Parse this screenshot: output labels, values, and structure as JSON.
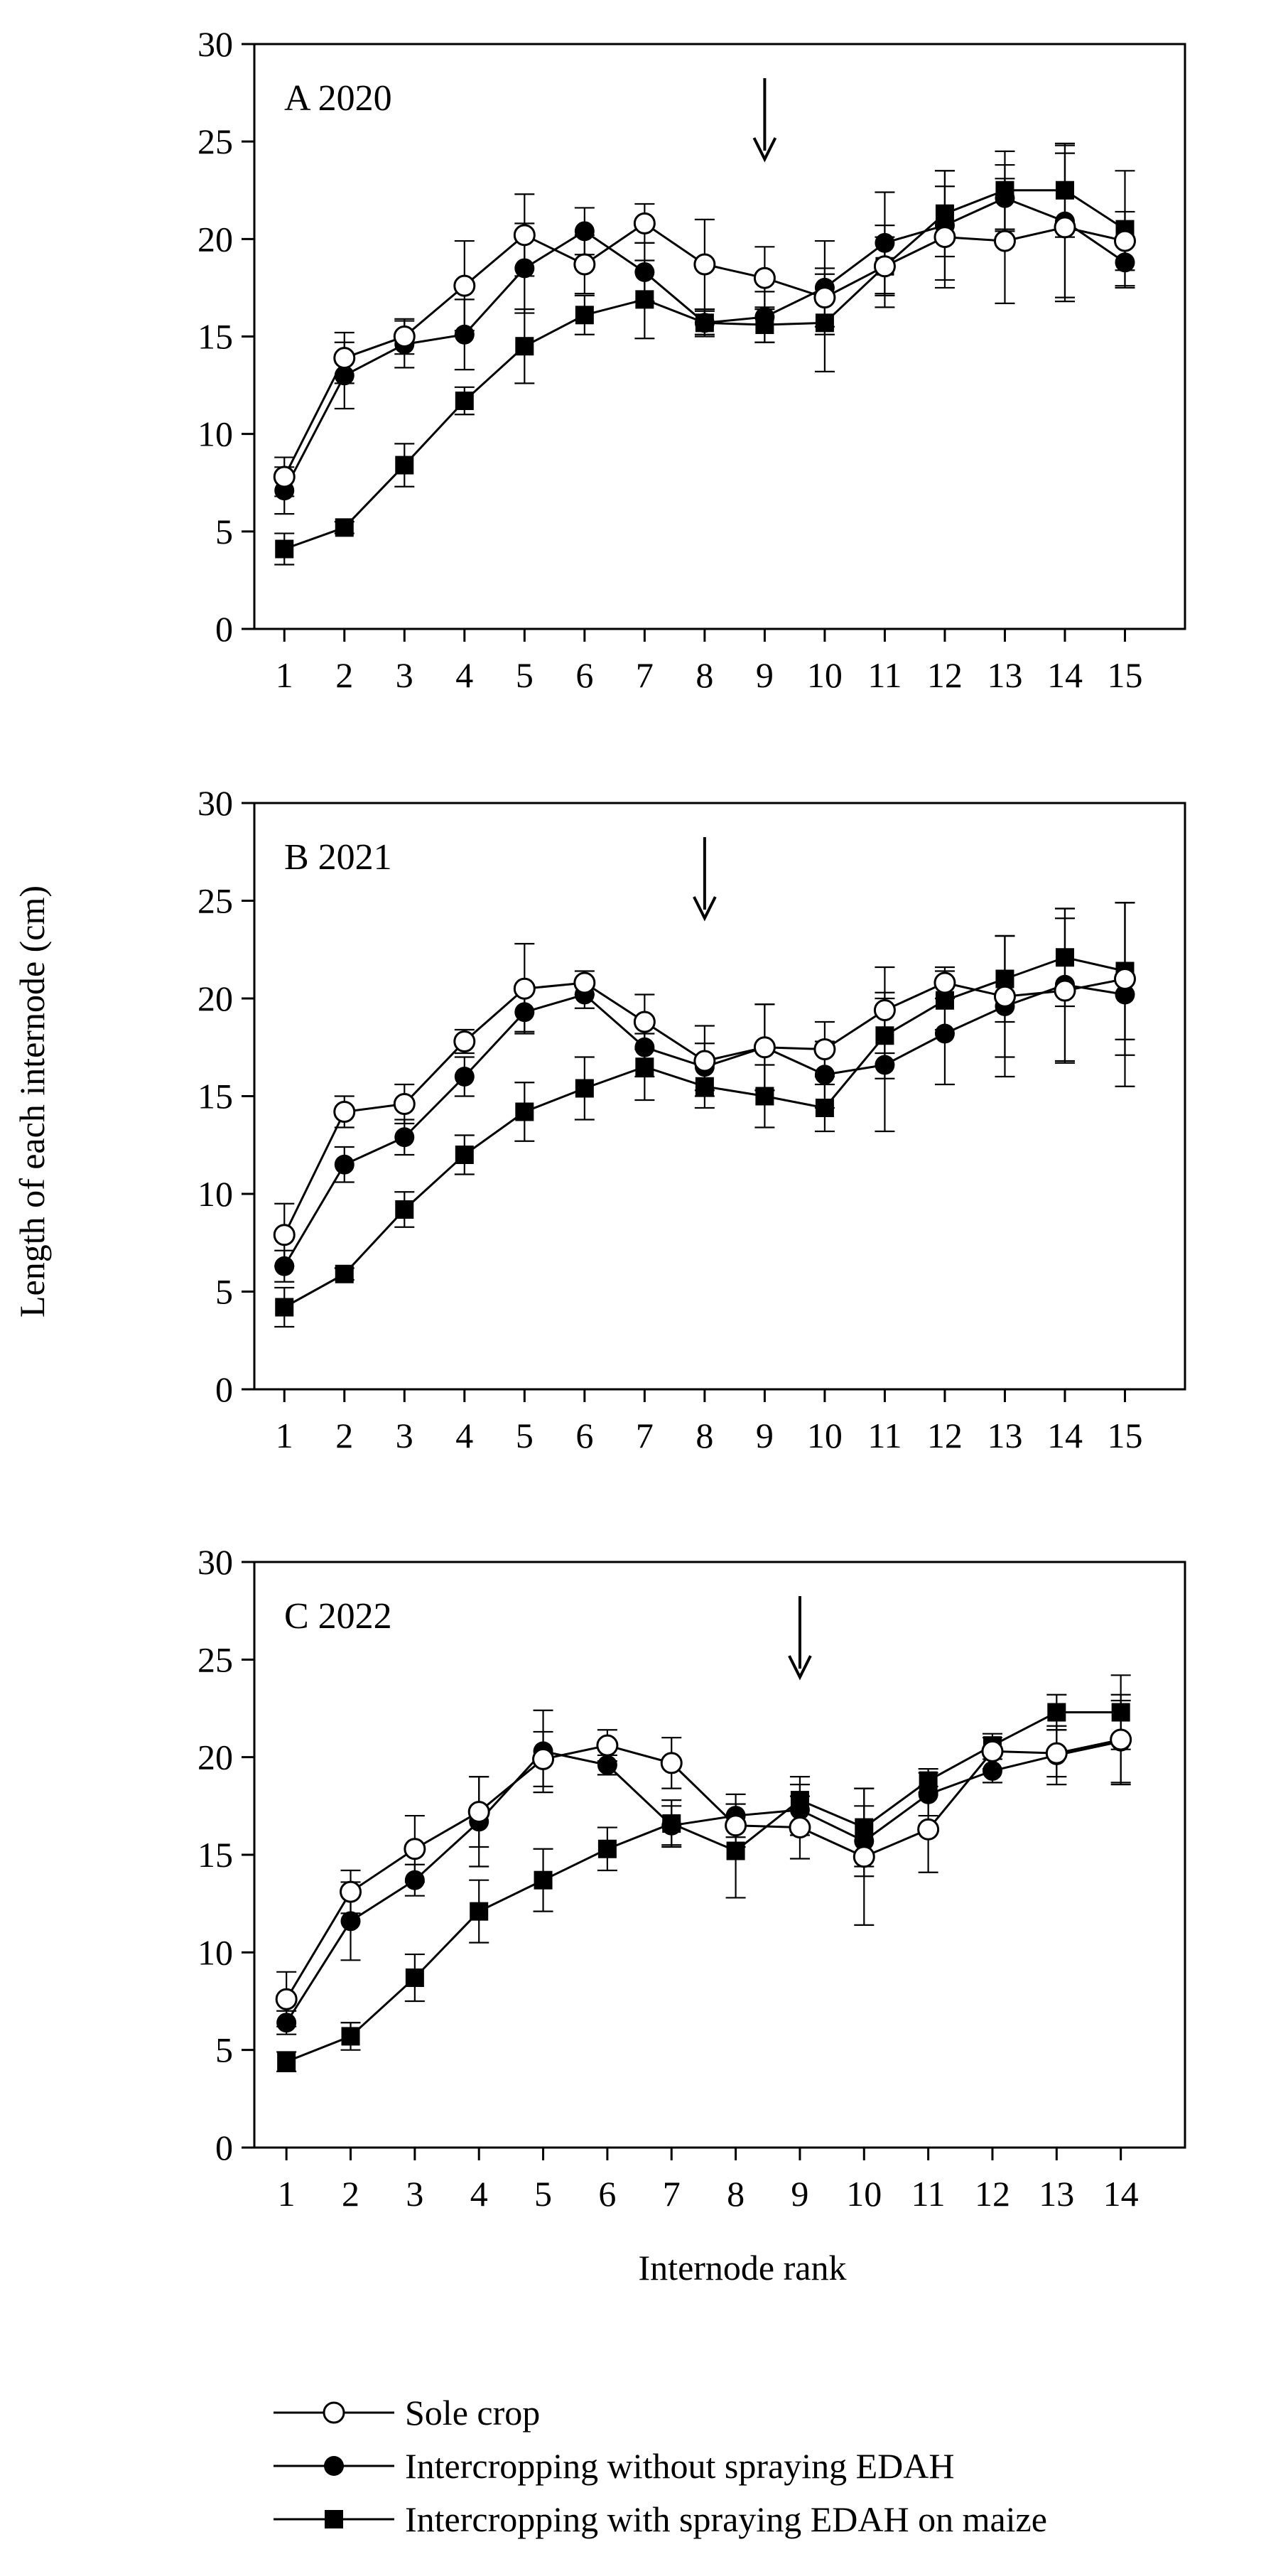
{
  "figure": {
    "ylabel": "Length of each internode (cm)",
    "xlabel": "Internode rank"
  },
  "legend": [
    {
      "marker": "open-circle",
      "label": "Sole crop"
    },
    {
      "marker": "filled-circle",
      "label": "Intercropping without spraying EDAH"
    },
    {
      "marker": "filled-square",
      "label": "Intercropping with spraying EDAH on maize"
    }
  ],
  "chart_data": [
    {
      "type": "line",
      "title": "A 2020",
      "x": [
        1,
        2,
        3,
        4,
        5,
        6,
        7,
        8,
        9,
        10,
        11,
        12,
        13,
        14,
        15
      ],
      "ylim": [
        0,
        30
      ],
      "yticks": [
        0,
        5,
        10,
        15,
        20,
        25,
        30
      ],
      "arrow_at": 9,
      "series": [
        {
          "name": "Sole crop",
          "marker": "open-circle",
          "values": [
            7.8,
            13.9,
            15.0,
            17.6,
            20.2,
            18.7,
            20.8,
            18.7,
            18.0,
            17.0,
            18.6,
            20.1,
            19.9,
            20.6,
            19.9
          ],
          "errors": [
            1.0,
            1.3,
            0.9,
            2.3,
            2.1,
            1.5,
            1.0,
            2.3,
            1.6,
            1.5,
            1.5,
            2.6,
            3.2,
            3.8,
            1.5
          ]
        },
        {
          "name": "Intercropping without spraying EDAH",
          "marker": "filled-circle",
          "values": [
            7.1,
            13.0,
            14.6,
            15.1,
            18.5,
            20.4,
            18.3,
            15.7,
            16.0,
            17.5,
            19.8,
            20.7,
            22.1,
            20.9,
            18.8
          ],
          "errors": [
            1.2,
            1.7,
            1.2,
            1.8,
            2.3,
            1.2,
            1.5,
            0.7,
            1.3,
            2.4,
            2.6,
            2.8,
            1.7,
            3.9,
            1.2
          ]
        },
        {
          "name": "Intercropping with spraying EDAH on maize",
          "marker": "filled-square",
          "values": [
            4.1,
            5.2,
            8.4,
            11.7,
            14.5,
            16.1,
            16.9,
            15.7,
            15.6,
            15.7,
            18.6,
            21.3,
            22.5,
            22.5,
            20.5
          ],
          "errors": [
            0.8,
            0.3,
            1.1,
            0.7,
            1.9,
            1.0,
            2.0,
            0.6,
            0.9,
            2.5,
            2.1,
            2.2,
            2.0,
            2.4,
            3.0
          ]
        }
      ]
    },
    {
      "type": "line",
      "title": "B 2021",
      "x": [
        1,
        2,
        3,
        4,
        5,
        6,
        7,
        8,
        9,
        10,
        11,
        12,
        13,
        14,
        15
      ],
      "ylim": [
        0,
        30
      ],
      "yticks": [
        0,
        5,
        10,
        15,
        20,
        25,
        30
      ],
      "arrow_at": 8,
      "series": [
        {
          "name": "Sole crop",
          "marker": "open-circle",
          "values": [
            7.9,
            14.2,
            14.6,
            17.8,
            20.5,
            20.8,
            18.8,
            16.8,
            17.5,
            17.4,
            19.4,
            20.8,
            20.1,
            20.4,
            21.0
          ],
          "errors": [
            1.6,
            0.8,
            1.0,
            0.6,
            2.3,
            0.6,
            1.4,
            1.8,
            2.2,
            1.4,
            2.2,
            0.8,
            3.1,
            3.7,
            3.9
          ]
        },
        {
          "name": "Intercropping without spraying EDAH",
          "marker": "filled-circle",
          "values": [
            6.3,
            11.5,
            12.9,
            16.0,
            19.3,
            20.2,
            17.5,
            16.5,
            17.5,
            16.1,
            16.6,
            18.2,
            19.6,
            20.7,
            20.2
          ],
          "errors": [
            0.8,
            0.9,
            0.9,
            1.0,
            1.0,
            0.7,
            1.5,
            1.2,
            2.2,
            1.7,
            3.4,
            2.6,
            3.6,
            3.9,
            4.7
          ]
        },
        {
          "name": "Intercropping with spraying EDAH on maize",
          "marker": "filled-square",
          "values": [
            4.2,
            5.9,
            9.2,
            12.0,
            14.2,
            15.4,
            16.5,
            15.5,
            15.0,
            14.4,
            18.1,
            19.9,
            21.0,
            22.1,
            21.4
          ],
          "errors": [
            1.0,
            0.3,
            0.9,
            1.0,
            1.5,
            1.6,
            1.7,
            1.1,
            1.6,
            1.2,
            2.2,
            1.5,
            2.2,
            2.5,
            3.5
          ]
        }
      ]
    },
    {
      "type": "line",
      "title": "C 2022",
      "x": [
        1,
        2,
        3,
        4,
        5,
        6,
        7,
        8,
        9,
        10,
        11,
        12,
        13,
        14
      ],
      "ylim": [
        0,
        30
      ],
      "yticks": [
        0,
        5,
        10,
        15,
        20,
        25,
        30
      ],
      "arrow_at": 9,
      "series": [
        {
          "name": "Sole crop",
          "marker": "open-circle",
          "values": [
            7.6,
            13.1,
            15.3,
            17.2,
            19.9,
            20.6,
            19.7,
            16.5,
            16.4,
            14.9,
            16.3,
            20.3,
            20.2,
            20.9
          ],
          "errors": [
            1.4,
            1.1,
            1.7,
            1.8,
            1.4,
            0.8,
            1.3,
            1.1,
            1.6,
            3.5,
            2.2,
            0.9,
            1.2,
            2.3
          ]
        },
        {
          "name": "Intercropping without spraying EDAH",
          "marker": "filled-circle",
          "values": [
            6.4,
            11.6,
            13.7,
            16.7,
            20.3,
            19.6,
            16.5,
            17.0,
            17.3,
            15.7,
            18.1,
            19.3,
            20.1,
            20.8
          ],
          "errors": [
            0.6,
            2.0,
            0.8,
            2.3,
            2.1,
            0.5,
            1.0,
            1.1,
            1.3,
            1.8,
            1.1,
            0.6,
            1.5,
            2.1
          ]
        },
        {
          "name": "Intercropping with spraying EDAH on maize",
          "marker": "filled-square",
          "values": [
            4.4,
            5.7,
            8.7,
            12.1,
            13.7,
            15.3,
            16.6,
            15.2,
            17.8,
            16.4,
            18.8,
            20.6,
            22.3,
            22.3
          ],
          "errors": [
            0.5,
            0.7,
            1.2,
            1.6,
            1.6,
            1.1,
            1.2,
            2.4,
            1.2,
            2.0,
            0.6,
            0.4,
            0.9,
            1.9
          ]
        }
      ]
    }
  ]
}
